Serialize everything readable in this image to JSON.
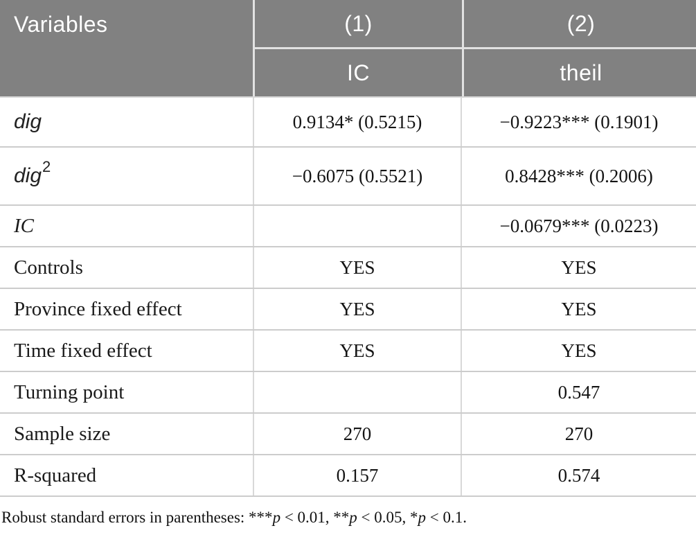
{
  "table": {
    "header": {
      "variables_label": "Variables",
      "model1": "(1)",
      "model2": "(2)",
      "model1_dep_var": "IC",
      "model2_dep_var": "theil"
    },
    "rows": [
      {
        "label": "dig",
        "c1": "0.9134* (0.5215)",
        "c2": "−0.9223*** (0.1901)"
      },
      {
        "label": "dig",
        "sup": "2",
        "c1": "−0.6075 (0.5521)",
        "c2": "0.8428*** (0.2006)"
      },
      {
        "label": "IC",
        "c1": "",
        "c2": "−0.0679*** (0.0223)"
      },
      {
        "label": "Controls",
        "c1": "YES",
        "c2": "YES"
      },
      {
        "label": "Province fixed effect",
        "c1": "YES",
        "c2": "YES"
      },
      {
        "label": "Time fixed effect",
        "c1": "YES",
        "c2": "YES"
      },
      {
        "label": "Turning point",
        "c1": "",
        "c2": "0.547"
      },
      {
        "label": "Sample size",
        "c1": "270",
        "c2": "270"
      },
      {
        "label": "R-squared",
        "c1": "0.157",
        "c2": "0.574"
      }
    ]
  },
  "footnote": {
    "prefix": "Robust standard errors in parentheses: ***",
    "p": "p",
    "seg1": " < 0.01, **",
    "seg2": " < 0.05, *",
    "seg3": " < 0.1."
  },
  "colors": {
    "header_bg": "#818181",
    "header_text": "#ffffff",
    "body_text": "#141414",
    "grid_line": "#cccccc"
  }
}
